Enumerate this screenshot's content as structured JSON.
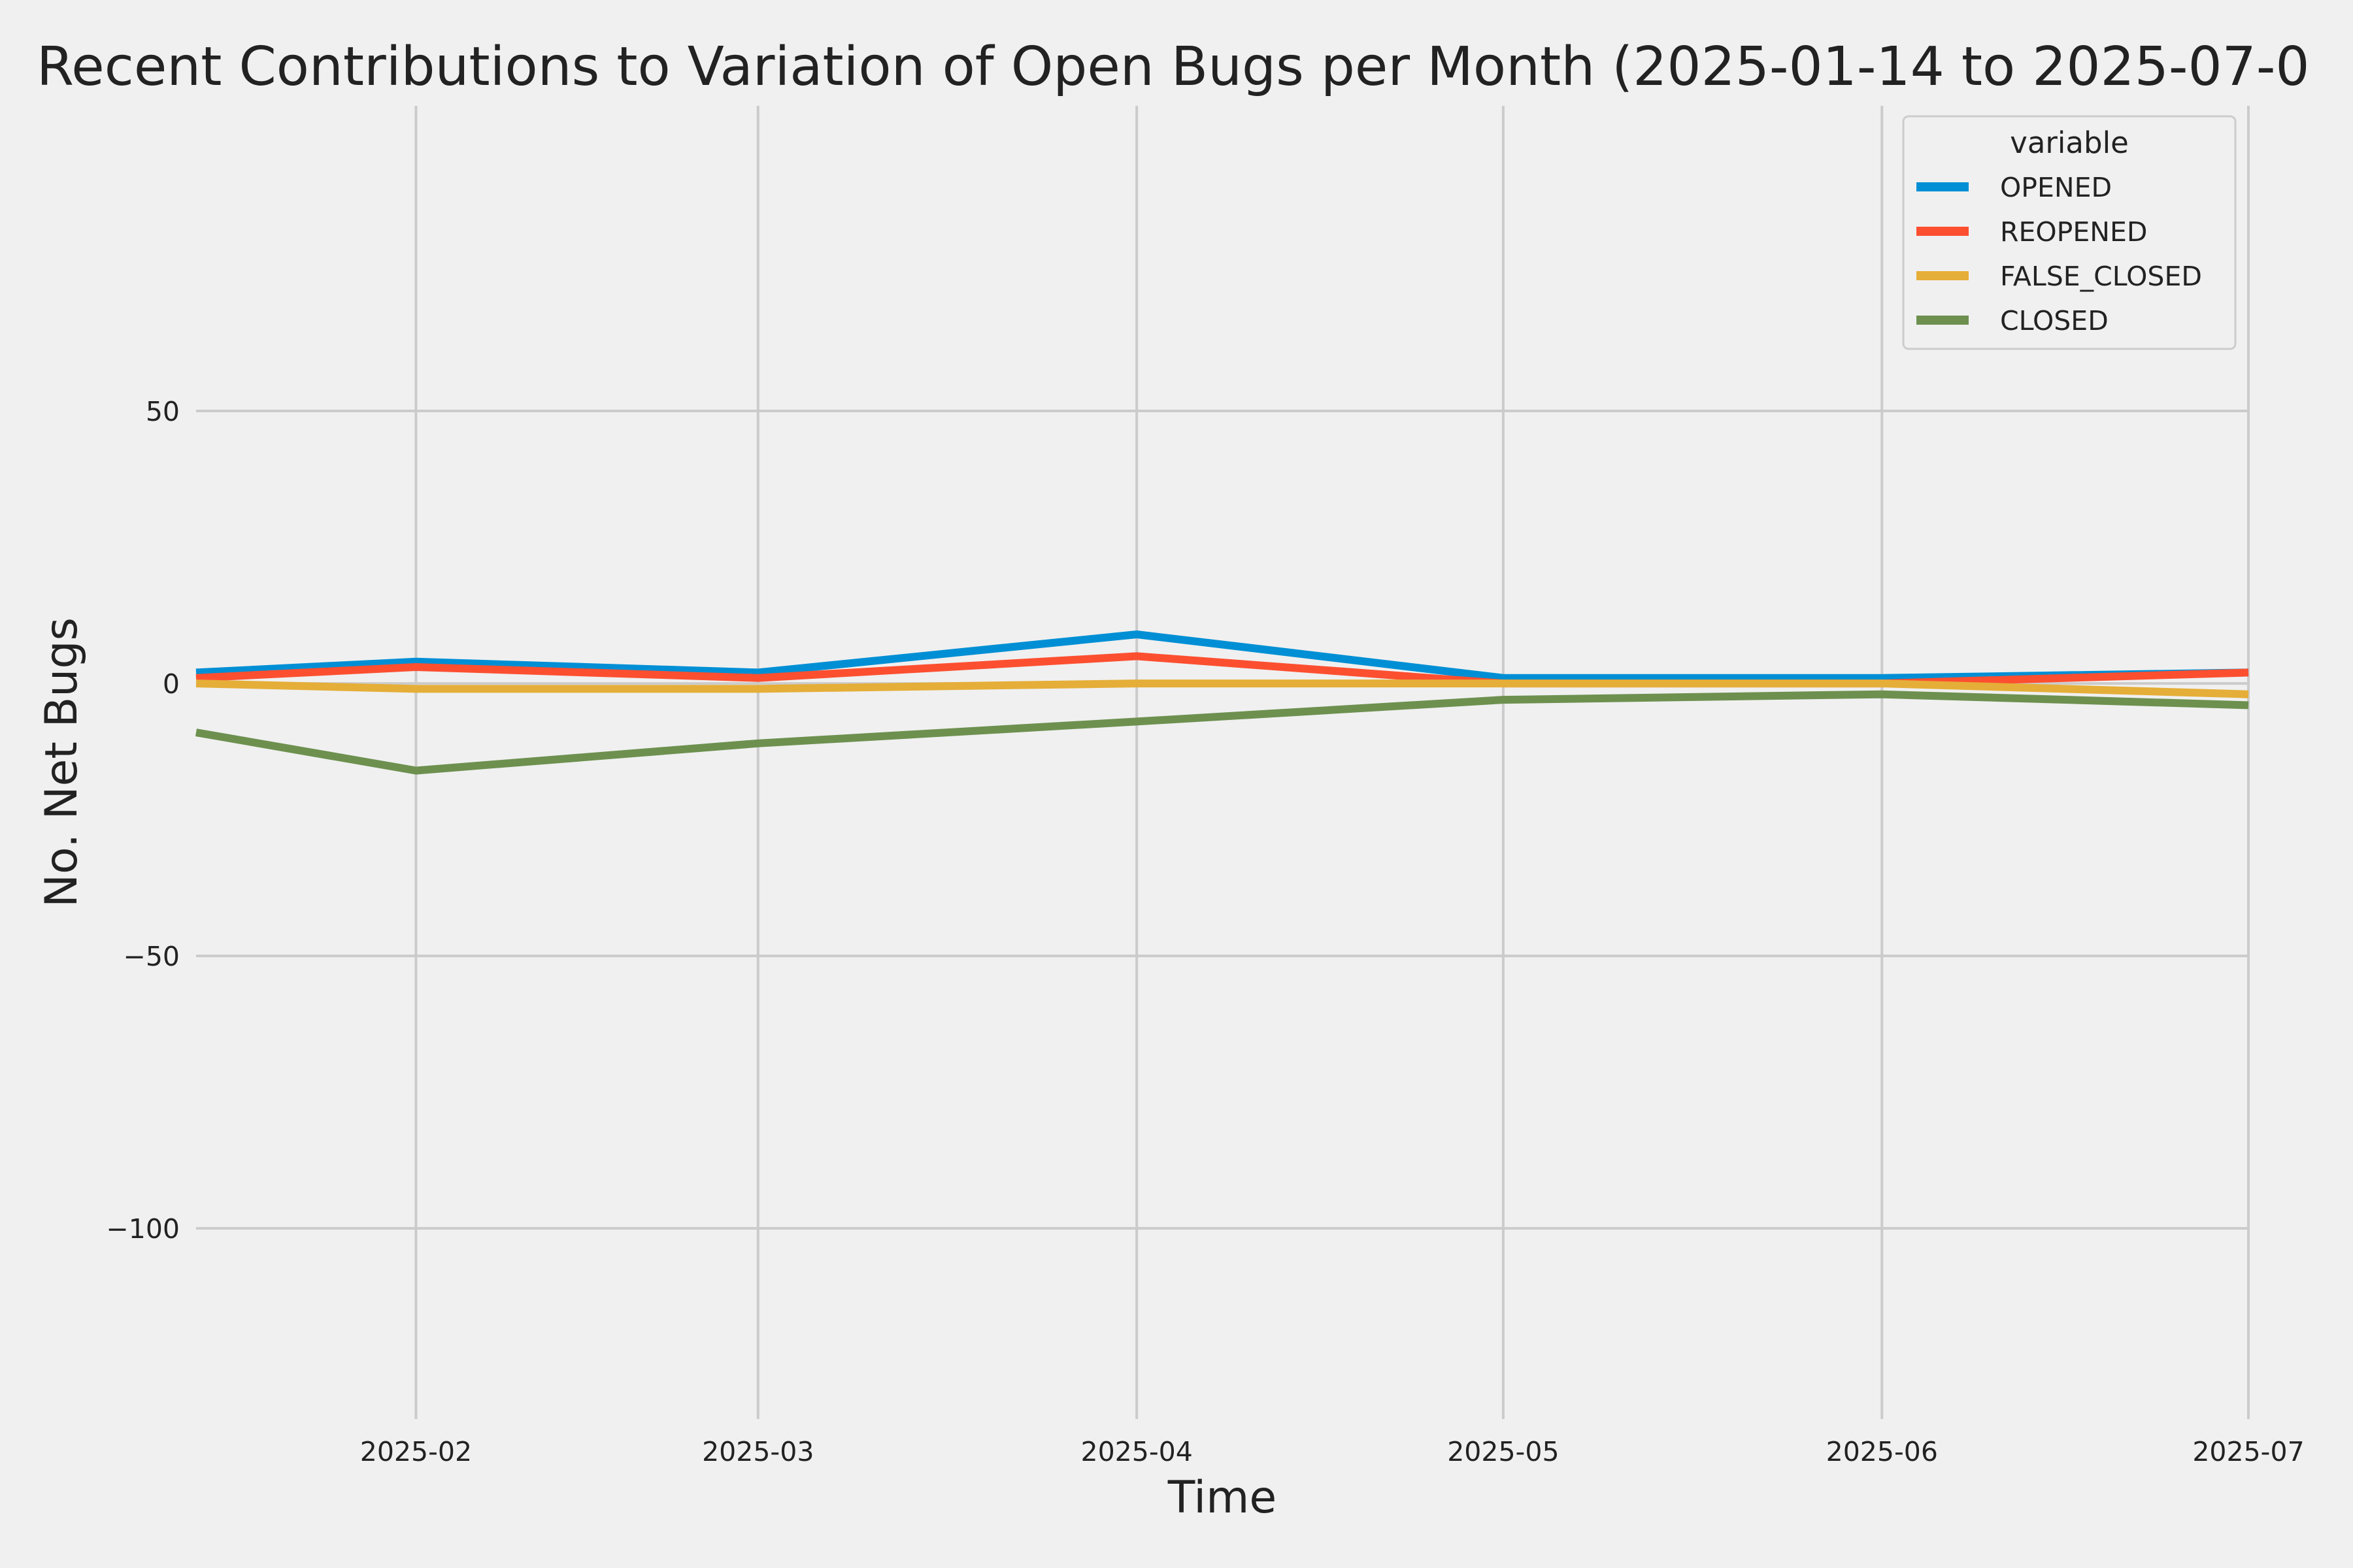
{
  "chart_data": {
    "type": "line",
    "title": "Recent Contributions to Variation of Open Bugs per Month (2025-01-14 to 2025-07-0",
    "xlabel": "Time",
    "ylabel": "No. Net Bugs",
    "x_ticks": [
      "2025-02",
      "2025-03",
      "2025-04",
      "2025-05",
      "2025-06",
      "2025-07"
    ],
    "y_ticks": [
      50,
      0,
      -50,
      -100
    ],
    "y_tick_labels": [
      "50",
      "0",
      "−50",
      "−100"
    ],
    "xlim": [
      "2025-01-14",
      "2025-07-01"
    ],
    "ylim": [
      -135,
      106
    ],
    "grid": true,
    "legend": {
      "title": "variable",
      "placement": "top-right"
    },
    "x": [
      "2025-01-14",
      "2025-02-01",
      "2025-03-01",
      "2025-04-01",
      "2025-05-01",
      "2025-06-01",
      "2025-07-01"
    ],
    "series": [
      {
        "name": "OPENED",
        "color": "#008fd5",
        "values": [
          2,
          4,
          2,
          9,
          1,
          1,
          2
        ]
      },
      {
        "name": "REOPENED",
        "color": "#fc4f30",
        "values": [
          1,
          3,
          1,
          5,
          0,
          0,
          2
        ]
      },
      {
        "name": "FALSE_CLOSED",
        "color": "#e5ae38",
        "values": [
          0,
          -1,
          -1,
          0,
          0,
          0,
          -2
        ]
      },
      {
        "name": "CLOSED",
        "color": "#6d904f",
        "values": [
          -9,
          -16,
          -11,
          -7,
          -3,
          -2,
          -4
        ]
      }
    ]
  }
}
